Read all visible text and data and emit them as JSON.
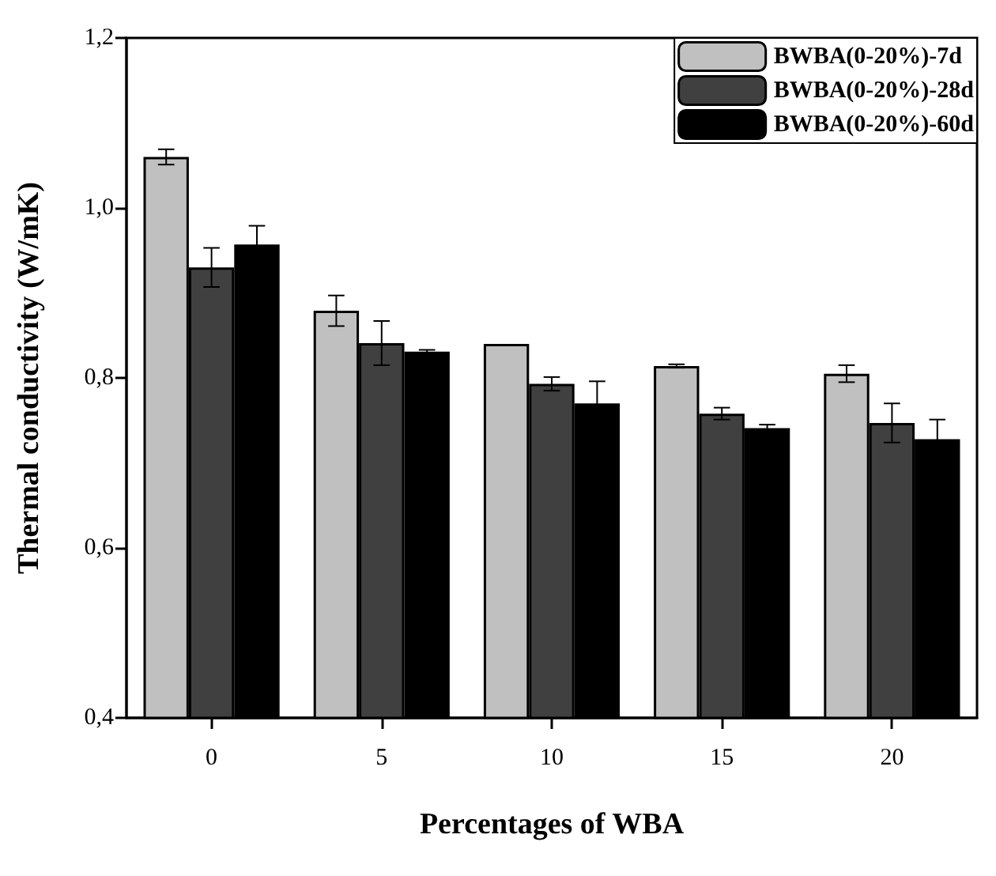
{
  "chart_data": {
    "type": "bar",
    "xlabel": "Percentages of WBA",
    "ylabel": "Thermal conductivity (W/mK)",
    "categories": [
      "0",
      "5",
      "10",
      "15",
      "20"
    ],
    "series": [
      {
        "name": "BWBA(0-20%)-7d",
        "color": "#c0c0c0",
        "values": [
          1.06,
          0.879,
          0.84,
          0.814,
          0.805
        ],
        "errors": [
          0.009,
          0.018,
          null,
          0.002,
          0.01
        ]
      },
      {
        "name": "BWBA(0-20%)-28d",
        "color": "#404040",
        "values": [
          0.93,
          0.841,
          0.793,
          0.758,
          0.747
        ],
        "errors": [
          0.023,
          0.026,
          0.008,
          0.007,
          0.023
        ]
      },
      {
        "name": "BWBA(0-20%)-60d",
        "color": "#000000",
        "values": [
          0.957,
          0.831,
          0.77,
          0.741,
          0.728
        ],
        "errors": [
          0.022,
          0.002,
          0.026,
          0.004,
          0.023
        ]
      }
    ],
    "ylim": [
      0.4,
      1.2
    ],
    "yticks": [
      {
        "value": 0.4,
        "label": "0,4"
      },
      {
        "value": 0.6,
        "label": "0,6"
      },
      {
        "value": 0.8,
        "label": "0,8"
      },
      {
        "value": 1.0,
        "label": "1,0"
      },
      {
        "value": 1.2,
        "label": "1,2"
      }
    ],
    "legend": "top right",
    "grid": false
  }
}
